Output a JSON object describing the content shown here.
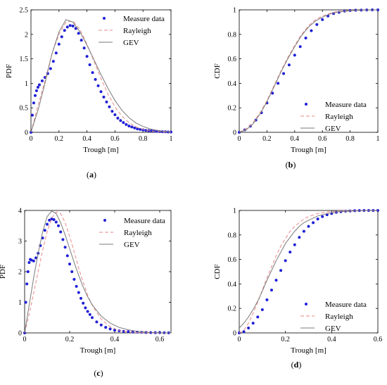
{
  "chart_data": [
    {
      "type": "line",
      "panel": "a",
      "caption_prefix": "(",
      "caption_letter": "a",
      "caption_suffix": ")",
      "xlabel": "Trough [m]",
      "ylabel": "PDF",
      "xlim": [
        0,
        1
      ],
      "ylim": [
        0,
        2.5
      ],
      "xticks": [
        "0",
        "0.2",
        "0.4",
        "0.6",
        "0.8",
        "1"
      ],
      "xtick_values": [
        0,
        0.2,
        0.4,
        0.6,
        0.8,
        1
      ],
      "yticks": [
        "0",
        "0.5",
        "1",
        "1.5",
        "2",
        "2.5"
      ],
      "ytick_values": [
        0,
        0.5,
        1,
        1.5,
        2,
        2.5
      ],
      "legend_position": "top-right",
      "series": [
        {
          "name": "Measure data",
          "style": "dots",
          "color": "#1f1fd6",
          "x": [
            0.0,
            0.01,
            0.02,
            0.03,
            0.04,
            0.05,
            0.06,
            0.08,
            0.1,
            0.12,
            0.14,
            0.16,
            0.18,
            0.2,
            0.22,
            0.24,
            0.26,
            0.28,
            0.3,
            0.32,
            0.34,
            0.36,
            0.38,
            0.4,
            0.42,
            0.44,
            0.46,
            0.48,
            0.5,
            0.52,
            0.54,
            0.56,
            0.58,
            0.6,
            0.62,
            0.64,
            0.66,
            0.68,
            0.7,
            0.72,
            0.74,
            0.76,
            0.78,
            0.8,
            0.82,
            0.84,
            0.86,
            0.88,
            0.9,
            0.92,
            0.94,
            0.96,
            0.98,
            1.0
          ],
          "y": [
            0.0,
            0.35,
            0.6,
            0.75,
            0.85,
            0.92,
            0.97,
            1.05,
            1.12,
            1.2,
            1.3,
            1.45,
            1.62,
            1.8,
            1.95,
            2.08,
            2.15,
            2.18,
            2.17,
            2.12,
            2.02,
            1.88,
            1.72,
            1.55,
            1.38,
            1.22,
            1.08,
            0.95,
            0.83,
            0.72,
            0.62,
            0.52,
            0.43,
            0.36,
            0.29,
            0.24,
            0.2,
            0.16,
            0.13,
            0.11,
            0.09,
            0.07,
            0.06,
            0.05,
            0.04,
            0.035,
            0.03,
            0.025,
            0.02,
            0.015,
            0.012,
            0.01,
            0.008,
            0.005
          ]
        },
        {
          "name": "Rayleigh",
          "style": "dashed",
          "color": "#e88a8a",
          "x": [
            0,
            0.05,
            0.1,
            0.15,
            0.2,
            0.25,
            0.3,
            0.35,
            0.4,
            0.45,
            0.5,
            0.55,
            0.6,
            0.65,
            0.7,
            0.75,
            0.8,
            0.85,
            0.9,
            0.95,
            1.0
          ],
          "y": [
            0,
            0.55,
            1.05,
            1.6,
            2.0,
            2.25,
            2.27,
            2.1,
            1.8,
            1.45,
            1.1,
            0.78,
            0.52,
            0.33,
            0.2,
            0.11,
            0.06,
            0.03,
            0.015,
            0.007,
            0.003
          ]
        },
        {
          "name": "GEV",
          "style": "solid",
          "color": "#7a7a7a",
          "x": [
            0,
            0.05,
            0.1,
            0.15,
            0.2,
            0.25,
            0.3,
            0.35,
            0.4,
            0.45,
            0.5,
            0.55,
            0.6,
            0.65,
            0.7,
            0.75,
            0.8,
            0.85,
            0.9,
            0.95,
            1.0
          ],
          "y": [
            0,
            0.45,
            1.0,
            1.6,
            2.05,
            2.3,
            2.25,
            2.05,
            1.78,
            1.48,
            1.18,
            0.9,
            0.65,
            0.45,
            0.3,
            0.19,
            0.12,
            0.07,
            0.04,
            0.02,
            0.01
          ]
        }
      ]
    },
    {
      "type": "line",
      "panel": "b",
      "caption_prefix": "(",
      "caption_letter": "b",
      "caption_suffix": ")",
      "xlabel": "Trough [m]",
      "ylabel": "CDF",
      "xlim": [
        0,
        1
      ],
      "ylim": [
        0,
        1
      ],
      "xticks": [
        "0",
        "0.2",
        "0.4",
        "0.6",
        "0.8",
        "1"
      ],
      "xtick_values": [
        0,
        0.2,
        0.4,
        0.6,
        0.8,
        1
      ],
      "yticks": [
        "0",
        "0.2",
        "0.4",
        "0.6",
        "0.8",
        "1"
      ],
      "ytick_values": [
        0,
        0.2,
        0.4,
        0.6,
        0.8,
        1
      ],
      "legend_position": "bottom-right",
      "series": [
        {
          "name": "Measure data",
          "style": "dots",
          "color": "#1f1fd6",
          "x": [
            0,
            0.04,
            0.08,
            0.12,
            0.16,
            0.2,
            0.24,
            0.28,
            0.32,
            0.36,
            0.4,
            0.44,
            0.48,
            0.52,
            0.56,
            0.6,
            0.64,
            0.68,
            0.72,
            0.76,
            0.8,
            0.84,
            0.88,
            0.92,
            0.96,
            1.0
          ],
          "y": [
            0,
            0.02,
            0.05,
            0.1,
            0.16,
            0.24,
            0.32,
            0.4,
            0.48,
            0.55,
            0.63,
            0.7,
            0.77,
            0.83,
            0.88,
            0.92,
            0.95,
            0.97,
            0.98,
            0.99,
            0.995,
            0.997,
            0.998,
            0.999,
            1.0,
            1.0
          ]
        },
        {
          "name": "Rayleigh",
          "style": "dashed",
          "color": "#e88a8a",
          "x": [
            0,
            0.05,
            0.1,
            0.15,
            0.2,
            0.25,
            0.3,
            0.35,
            0.4,
            0.45,
            0.5,
            0.55,
            0.6,
            0.65,
            0.7,
            0.8,
            0.9,
            1.0
          ],
          "y": [
            0,
            0.03,
            0.08,
            0.16,
            0.26,
            0.38,
            0.5,
            0.61,
            0.71,
            0.8,
            0.87,
            0.92,
            0.95,
            0.97,
            0.985,
            0.996,
            0.999,
            1.0
          ]
        },
        {
          "name": "GEV",
          "style": "solid",
          "color": "#7a7a7a",
          "x": [
            0,
            0.05,
            0.1,
            0.15,
            0.2,
            0.25,
            0.3,
            0.35,
            0.4,
            0.45,
            0.5,
            0.55,
            0.6,
            0.65,
            0.7,
            0.8,
            0.9,
            1.0
          ],
          "y": [
            0,
            0.02,
            0.07,
            0.15,
            0.25,
            0.37,
            0.49,
            0.6,
            0.7,
            0.79,
            0.86,
            0.91,
            0.94,
            0.965,
            0.98,
            0.993,
            0.998,
            1.0
          ]
        }
      ]
    },
    {
      "type": "line",
      "panel": "c",
      "caption_prefix": "(",
      "caption_letter": "c",
      "caption_suffix": ")",
      "xlabel": "Trough [m]",
      "ylabel": "PDF",
      "xlim": [
        0,
        0.65
      ],
      "ylim": [
        0,
        4
      ],
      "xticks": [
        "0",
        "0.2",
        "0.4",
        "0.6"
      ],
      "xtick_values": [
        0,
        0.2,
        0.4,
        0.6
      ],
      "yticks": [
        "0",
        "1",
        "2",
        "3",
        "4"
      ],
      "ytick_values": [
        0,
        1,
        2,
        3,
        4
      ],
      "legend_position": "top-right",
      "series": [
        {
          "name": "Measure data",
          "style": "dots",
          "color": "#1f1fd6",
          "x": [
            0.0,
            0.005,
            0.01,
            0.015,
            0.02,
            0.025,
            0.03,
            0.04,
            0.05,
            0.06,
            0.07,
            0.08,
            0.09,
            0.1,
            0.11,
            0.12,
            0.13,
            0.14,
            0.15,
            0.16,
            0.17,
            0.18,
            0.19,
            0.2,
            0.21,
            0.22,
            0.23,
            0.24,
            0.25,
            0.26,
            0.27,
            0.28,
            0.29,
            0.3,
            0.32,
            0.34,
            0.36,
            0.38,
            0.4,
            0.42,
            0.44,
            0.46,
            0.48,
            0.5,
            0.52,
            0.54,
            0.56,
            0.58,
            0.6,
            0.62,
            0.64
          ],
          "y": [
            0.0,
            1.0,
            1.6,
            2.0,
            2.3,
            2.4,
            2.38,
            2.35,
            2.45,
            2.6,
            2.85,
            3.1,
            3.35,
            3.55,
            3.68,
            3.72,
            3.7,
            3.62,
            3.5,
            3.3,
            3.05,
            2.8,
            2.52,
            2.25,
            2.0,
            1.75,
            1.52,
            1.32,
            1.13,
            0.97,
            0.82,
            0.7,
            0.6,
            0.5,
            0.36,
            0.26,
            0.18,
            0.13,
            0.09,
            0.07,
            0.05,
            0.04,
            0.03,
            0.025,
            0.02,
            0.015,
            0.012,
            0.01,
            0.008,
            0.005,
            0.004
          ]
        },
        {
          "name": "Rayleigh",
          "style": "dashed",
          "color": "#e88a8a",
          "x": [
            0,
            0.02,
            0.04,
            0.06,
            0.08,
            0.1,
            0.12,
            0.14,
            0.16,
            0.18,
            0.2,
            0.22,
            0.24,
            0.26,
            0.28,
            0.3,
            0.34,
            0.38,
            0.42,
            0.46,
            0.5,
            0.55,
            0.6,
            0.65
          ],
          "y": [
            0,
            0.6,
            1.3,
            2.0,
            2.7,
            3.3,
            3.75,
            3.95,
            3.9,
            3.6,
            3.15,
            2.65,
            2.12,
            1.65,
            1.23,
            0.9,
            0.45,
            0.2,
            0.08,
            0.03,
            0.01,
            0.003,
            0.001,
            0
          ]
        },
        {
          "name": "GEV",
          "style": "solid",
          "color": "#7a7a7a",
          "x": [
            0,
            0.02,
            0.04,
            0.06,
            0.08,
            0.1,
            0.12,
            0.14,
            0.16,
            0.18,
            0.2,
            0.22,
            0.24,
            0.26,
            0.28,
            0.3,
            0.34,
            0.38,
            0.42,
            0.46,
            0.5,
            0.55,
            0.6,
            0.65
          ],
          "y": [
            0,
            0.9,
            1.8,
            2.6,
            3.3,
            3.8,
            3.98,
            3.9,
            3.6,
            3.2,
            2.75,
            2.3,
            1.88,
            1.5,
            1.18,
            0.92,
            0.55,
            0.32,
            0.18,
            0.1,
            0.05,
            0.02,
            0.008,
            0.003
          ]
        }
      ]
    },
    {
      "type": "line",
      "panel": "d",
      "caption_prefix": "(",
      "caption_letter": "d",
      "caption_suffix": ")",
      "xlabel": "Trough [m]",
      "ylabel": "CDF",
      "xlim": [
        0,
        0.6
      ],
      "ylim": [
        0,
        1
      ],
      "xticks": [
        "0",
        "0.2",
        "0.4",
        "0.6"
      ],
      "xtick_values": [
        0,
        0.2,
        0.4,
        0.6
      ],
      "yticks": [
        "0",
        "0.2",
        "0.4",
        "0.6",
        "0.8",
        "1"
      ],
      "ytick_values": [
        0,
        0.2,
        0.4,
        0.6,
        0.8,
        1
      ],
      "legend_position": "bottom-right",
      "series": [
        {
          "name": "Measure data",
          "style": "dots",
          "color": "#1f1fd6",
          "x": [
            0,
            0.02,
            0.04,
            0.06,
            0.08,
            0.1,
            0.12,
            0.14,
            0.16,
            0.18,
            0.2,
            0.22,
            0.24,
            0.26,
            0.28,
            0.3,
            0.32,
            0.34,
            0.36,
            0.38,
            0.4,
            0.42,
            0.44,
            0.46,
            0.48,
            0.5,
            0.52,
            0.54,
            0.56,
            0.58,
            0.6
          ],
          "y": [
            0,
            0.01,
            0.04,
            0.08,
            0.13,
            0.19,
            0.27,
            0.35,
            0.43,
            0.51,
            0.59,
            0.66,
            0.72,
            0.78,
            0.83,
            0.87,
            0.9,
            0.93,
            0.95,
            0.965,
            0.975,
            0.985,
            0.99,
            0.994,
            0.996,
            0.998,
            0.999,
            1.0,
            1.0,
            1.0,
            1.0
          ]
        },
        {
          "name": "Rayleigh",
          "style": "dashed",
          "color": "#e88a8a",
          "x": [
            0,
            0.02,
            0.04,
            0.06,
            0.08,
            0.1,
            0.12,
            0.14,
            0.16,
            0.18,
            0.2,
            0.22,
            0.24,
            0.26,
            0.28,
            0.3,
            0.34,
            0.38,
            0.42,
            0.46,
            0.5,
            0.55,
            0.6
          ],
          "y": [
            0,
            0.02,
            0.08,
            0.16,
            0.25,
            0.35,
            0.45,
            0.54,
            0.63,
            0.71,
            0.77,
            0.83,
            0.87,
            0.9,
            0.93,
            0.95,
            0.975,
            0.988,
            0.995,
            0.998,
            0.999,
            1.0,
            1.0
          ]
        },
        {
          "name": "GEV",
          "style": "solid",
          "color": "#7a7a7a",
          "x": [
            0,
            0.02,
            0.04,
            0.06,
            0.08,
            0.1,
            0.12,
            0.14,
            0.16,
            0.18,
            0.2,
            0.22,
            0.24,
            0.26,
            0.28,
            0.3,
            0.34,
            0.38,
            0.42,
            0.46,
            0.5,
            0.55,
            0.6
          ],
          "y": [
            0.04,
            0.08,
            0.13,
            0.19,
            0.26,
            0.34,
            0.43,
            0.51,
            0.59,
            0.66,
            0.73,
            0.78,
            0.83,
            0.87,
            0.9,
            0.92,
            0.955,
            0.975,
            0.987,
            0.993,
            0.996,
            0.998,
            0.999
          ]
        }
      ]
    }
  ]
}
